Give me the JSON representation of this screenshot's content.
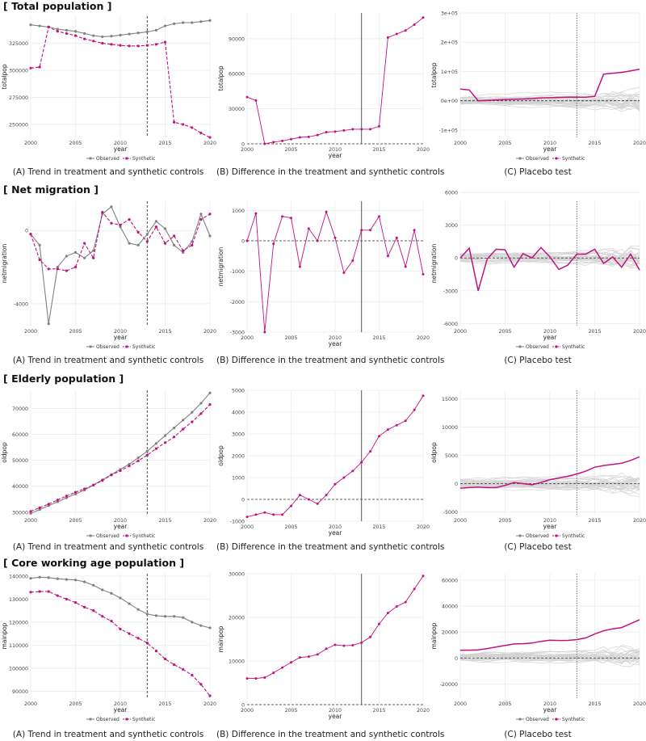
{
  "sections": [
    {
      "title": "[ Total population ]"
    },
    {
      "title": "[ Net migration ]"
    },
    {
      "title": "[ Elderly population ]"
    },
    {
      "title": "[ Core working age population ]"
    }
  ],
  "captions": {
    "A": "(A) Trend in treatment and synthetic controls",
    "B": "(B) Difference in the treatment and synthetic controls",
    "C": "(C) Placebo test"
  },
  "colors": {
    "observed": "#808080",
    "synthetic": "#c2127f",
    "placebo": "#d3d3d3",
    "grid": "#ececec",
    "treat_line": "#333333"
  },
  "chart_data": [
    {
      "id": "total-A",
      "type": "line",
      "xlabel": "year",
      "ylabel": "totalpop",
      "xlim": [
        2000,
        2020
      ],
      "ylim": [
        238000,
        350000
      ],
      "yticks": [
        250000,
        275000,
        300000,
        325000
      ],
      "ytick_labels": [
        "250000",
        "275000",
        "300000",
        "325000"
      ],
      "xticks": [
        2000,
        2005,
        2010,
        2015,
        2020
      ],
      "treatment_year": 2013,
      "legend": [
        "Observed",
        "Synthetic"
      ],
      "x": [
        2000,
        2001,
        2002,
        2003,
        2004,
        2005,
        2006,
        2007,
        2008,
        2009,
        2010,
        2011,
        2012,
        2013,
        2014,
        2015,
        2016,
        2017,
        2018,
        2019,
        2020
      ],
      "series": [
        {
          "name": "Observed",
          "values": [
            342000,
            341000,
            340000,
            338000,
            337000,
            336000,
            334000,
            332000,
            331000,
            331500,
            332500,
            333500,
            334500,
            335500,
            337000,
            341000,
            343000,
            344000,
            344000,
            345000,
            346000
          ]
        },
        {
          "name": "Synthetic",
          "values": [
            302000,
            303000,
            340000,
            336000,
            334000,
            332000,
            329000,
            327000,
            325000,
            324000,
            323000,
            322500,
            322500,
            323000,
            324000,
            326000,
            252000,
            250000,
            247000,
            242000,
            238000
          ]
        }
      ]
    },
    {
      "id": "total-B",
      "type": "line",
      "xlabel": "year",
      "ylabel": "totalpop",
      "xlim": [
        2000,
        2020
      ],
      "ylim": [
        0,
        112000
      ],
      "yticks": [
        0,
        30000,
        60000,
        90000
      ],
      "ytick_labels": [
        "0",
        "30000",
        "60000",
        "90000"
      ],
      "xticks": [
        2000,
        2005,
        2010,
        2015,
        2020
      ],
      "treatment_year": 2013,
      "x": [
        2000,
        2001,
        2002,
        2003,
        2004,
        2005,
        2006,
        2007,
        2008,
        2009,
        2010,
        2011,
        2012,
        2013,
        2014,
        2015,
        2016,
        2017,
        2018,
        2019,
        2020
      ],
      "series": [
        {
          "name": "",
          "values": [
            40000,
            37000,
            0,
            1500,
            2500,
            4000,
            5500,
            6000,
            7500,
            10000,
            10500,
            11500,
            12500,
            12500,
            12500,
            15000,
            91000,
            94000,
            97000,
            102000,
            108000
          ]
        }
      ]
    },
    {
      "id": "total-C",
      "type": "line",
      "xlabel": "year",
      "ylabel": "totalpop",
      "xlim": [
        2000,
        2020
      ],
      "ylim": [
        -125000,
        300000
      ],
      "yticks": [
        -100000,
        0,
        100000,
        200000,
        300000
      ],
      "ytick_labels": [
        "-1e+05",
        "0e+00",
        "1e+05",
        "2e+05",
        "3e+05"
      ],
      "xticks": [
        2000,
        2005,
        2010,
        2015,
        2020
      ],
      "treatment_year": 2013,
      "legend": [
        "Observed",
        "Synthetic"
      ],
      "x": [
        2000,
        2001,
        2002,
        2003,
        2004,
        2005,
        2006,
        2007,
        2008,
        2009,
        2010,
        2011,
        2012,
        2013,
        2014,
        2015,
        2016,
        2017,
        2018,
        2019,
        2020
      ],
      "series": [
        {
          "name": "",
          "values": [
            40000,
            37000,
            0,
            1500,
            2500,
            4000,
            5500,
            6000,
            7500,
            10000,
            10500,
            11500,
            12500,
            12500,
            12500,
            15000,
            91000,
            94000,
            97000,
            102000,
            108000
          ]
        }
      ]
    },
    {
      "id": "net-A",
      "type": "line",
      "xlabel": "year",
      "ylabel": "netmigration",
      "xlim": [
        2000,
        2020
      ],
      "ylim": [
        -5200,
        1600
      ],
      "yticks": [
        -4000,
        0
      ],
      "ytick_labels": [
        "-4000",
        "0"
      ],
      "xticks": [
        2000,
        2005,
        2010,
        2015,
        2020
      ],
      "treatment_year": 2013,
      "legend": [
        "Observed",
        "Synthetic"
      ],
      "x": [
        2000,
        2001,
        2002,
        2003,
        2004,
        2005,
        2006,
        2007,
        2008,
        2009,
        2010,
        2011,
        2012,
        2013,
        2014,
        2015,
        2016,
        2017,
        2018,
        2019,
        2020
      ],
      "series": [
        {
          "name": "Observed",
          "values": [
            -200,
            -800,
            -5100,
            -2000,
            -1400,
            -1200,
            -1500,
            -1100,
            900,
            1300,
            200,
            -700,
            -800,
            -200,
            500,
            100,
            -800,
            -1200,
            -600,
            900,
            -300
          ]
        },
        {
          "name": "Synthetic",
          "values": [
            -200,
            -1600,
            -2100,
            -2100,
            -2200,
            -2000,
            -700,
            -1500,
            1000,
            400,
            300,
            600,
            -100,
            -600,
            200,
            -700,
            -300,
            -1100,
            -800,
            600,
            900
          ]
        }
      ]
    },
    {
      "id": "net-B",
      "type": "line",
      "xlabel": "year",
      "ylabel": "netmigration",
      "xlim": [
        2000,
        2020
      ],
      "ylim": [
        -3000,
        1300
      ],
      "yticks": [
        -3000,
        -2000,
        -1000,
        0,
        1000
      ],
      "ytick_labels": [
        "-3000",
        "-2000",
        "-1000",
        "0",
        "1000"
      ],
      "xticks": [
        2000,
        2005,
        2010,
        2015,
        2020
      ],
      "treatment_year": 2013,
      "x": [
        2000,
        2001,
        2002,
        2003,
        2004,
        2005,
        2006,
        2007,
        2008,
        2009,
        2010,
        2011,
        2012,
        2013,
        2014,
        2015,
        2016,
        2017,
        2018,
        2019,
        2020
      ],
      "series": [
        {
          "name": "",
          "values": [
            0,
            900,
            -3000,
            -100,
            800,
            750,
            -850,
            400,
            0,
            950,
            100,
            -1050,
            -650,
            350,
            350,
            800,
            -500,
            100,
            -850,
            350,
            -1100
          ]
        }
      ]
    },
    {
      "id": "net-C",
      "type": "line",
      "xlabel": "year",
      "ylabel": "netmigration",
      "xlim": [
        2000,
        2020
      ],
      "ylim": [
        -6200,
        5200
      ],
      "yticks": [
        -6000,
        -3000,
        0,
        3000,
        6000
      ],
      "ytick_labels": [
        "-6000",
        "-3000",
        "0",
        "3000",
        "6000"
      ],
      "xticks": [
        2000,
        2005,
        2010,
        2015,
        2020
      ],
      "treatment_year": 2013,
      "legend": [
        "Observed",
        "Synthetic"
      ],
      "x": [
        2000,
        2001,
        2002,
        2003,
        2004,
        2005,
        2006,
        2007,
        2008,
        2009,
        2010,
        2011,
        2012,
        2013,
        2014,
        2015,
        2016,
        2017,
        2018,
        2019,
        2020
      ],
      "series": [
        {
          "name": "",
          "values": [
            0,
            900,
            -3000,
            -100,
            800,
            750,
            -850,
            400,
            0,
            950,
            100,
            -1050,
            -650,
            350,
            350,
            800,
            -500,
            100,
            -850,
            350,
            -1100
          ]
        }
      ]
    },
    {
      "id": "elderly-A",
      "type": "line",
      "xlabel": "year",
      "ylabel": "oldpop",
      "xlim": [
        2000,
        2020
      ],
      "ylim": [
        29000,
        77000
      ],
      "yticks": [
        30000,
        40000,
        50000,
        60000,
        70000
      ],
      "ytick_labels": [
        "30000",
        "40000",
        "50000",
        "60000",
        "70000"
      ],
      "xticks": [
        2000,
        2005,
        2010,
        2015,
        2020
      ],
      "treatment_year": 2013,
      "legend": [
        "Observed",
        "Synthetic"
      ],
      "x": [
        2000,
        2001,
        2002,
        2003,
        2004,
        2005,
        2006,
        2007,
        2008,
        2009,
        2010,
        2011,
        2012,
        2013,
        2014,
        2015,
        2016,
        2017,
        2018,
        2019,
        2020
      ],
      "series": [
        {
          "name": "Observed",
          "values": [
            29500,
            31000,
            32500,
            34000,
            35500,
            37000,
            38500,
            40500,
            42500,
            44500,
            46500,
            48500,
            51000,
            53500,
            56500,
            59500,
            62500,
            65500,
            68500,
            72000,
            76000
          ]
        },
        {
          "name": "Synthetic",
          "values": [
            30300,
            31700,
            33100,
            34700,
            36200,
            37700,
            39000,
            40400,
            42200,
            44300,
            46000,
            47800,
            49800,
            52000,
            54500,
            56800,
            59000,
            62000,
            64800,
            68000,
            71500
          ]
        }
      ]
    },
    {
      "id": "elderly-B",
      "type": "line",
      "xlabel": "year",
      "ylabel": "oldpop",
      "xlim": [
        2000,
        2020
      ],
      "ylim": [
        -1000,
        5000
      ],
      "yticks": [
        -1000,
        0,
        1000,
        2000,
        3000,
        4000,
        5000
      ],
      "ytick_labels": [
        "-1000",
        "0",
        "1000",
        "2000",
        "3000",
        "4000",
        "5000"
      ],
      "xticks": [
        2000,
        2005,
        2010,
        2015,
        2020
      ],
      "treatment_year": 2013,
      "x": [
        2000,
        2001,
        2002,
        2003,
        2004,
        2005,
        2006,
        2007,
        2008,
        2009,
        2010,
        2011,
        2012,
        2013,
        2014,
        2015,
        2016,
        2017,
        2018,
        2019,
        2020
      ],
      "series": [
        {
          "name": "",
          "values": [
            -800,
            -700,
            -600,
            -700,
            -700,
            -300,
            200,
            0,
            -200,
            200,
            700,
            1000,
            1300,
            1700,
            2200,
            2900,
            3200,
            3400,
            3600,
            4100,
            4750
          ]
        }
      ]
    },
    {
      "id": "elderly-C",
      "type": "line",
      "xlabel": "year",
      "ylabel": "oldpop",
      "xlim": [
        2000,
        2020
      ],
      "ylim": [
        -5500,
        16500
      ],
      "yticks": [
        -5000,
        0,
        5000,
        10000,
        15000
      ],
      "ytick_labels": [
        "-5000",
        "0",
        "5000",
        "10000",
        "15000"
      ],
      "xticks": [
        2000,
        2005,
        2010,
        2015,
        2020
      ],
      "treatment_year": 2013,
      "legend": [
        "Observed",
        "Synthetic"
      ],
      "x": [
        2000,
        2001,
        2002,
        2003,
        2004,
        2005,
        2006,
        2007,
        2008,
        2009,
        2010,
        2011,
        2012,
        2013,
        2014,
        2015,
        2016,
        2017,
        2018,
        2019,
        2020
      ],
      "series": [
        {
          "name": "",
          "values": [
            -800,
            -700,
            -600,
            -700,
            -700,
            -300,
            200,
            0,
            -200,
            200,
            700,
            1000,
            1300,
            1700,
            2200,
            2900,
            3200,
            3400,
            3600,
            4100,
            4750
          ]
        }
      ]
    },
    {
      "id": "core-A",
      "type": "line",
      "xlabel": "year",
      "ylabel": "mainpop",
      "xlim": [
        2000,
        2020
      ],
      "ylim": [
        87000,
        141000
      ],
      "yticks": [
        90000,
        100000,
        110000,
        120000,
        130000,
        140000
      ],
      "ytick_labels": [
        "90000",
        "100000",
        "110000",
        "120000",
        "130000",
        "140000"
      ],
      "xticks": [
        2000,
        2005,
        2010,
        2015,
        2020
      ],
      "treatment_year": 2013,
      "legend": [
        "Observed",
        "Synthetic"
      ],
      "x": [
        2000,
        2001,
        2002,
        2003,
        2004,
        2005,
        2006,
        2007,
        2008,
        2009,
        2010,
        2011,
        2012,
        2013,
        2014,
        2015,
        2016,
        2017,
        2018,
        2019,
        2020
      ],
      "series": [
        {
          "name": "Observed",
          "values": [
            139000,
            139500,
            139300,
            138800,
            138500,
            138300,
            137500,
            136000,
            134000,
            132500,
            130500,
            128000,
            125500,
            123500,
            122800,
            122500,
            122500,
            122000,
            120000,
            118500,
            117500
          ]
        },
        {
          "name": "Synthetic",
          "values": [
            133000,
            133300,
            133300,
            131500,
            130000,
            128500,
            126500,
            125000,
            122500,
            120500,
            117000,
            115000,
            113000,
            111000,
            107500,
            104000,
            101500,
            99500,
            97000,
            93000,
            88000
          ]
        }
      ]
    },
    {
      "id": "core-B",
      "type": "line",
      "xlabel": "year",
      "ylabel": "mainpop",
      "xlim": [
        2000,
        2020
      ],
      "ylim": [
        0,
        30000
      ],
      "yticks": [
        0,
        10000,
        20000,
        30000
      ],
      "ytick_labels": [
        "0",
        "10000",
        "20000",
        "30000"
      ],
      "xticks": [
        2000,
        2005,
        2010,
        2015,
        2020
      ],
      "treatment_year": 2013,
      "x": [
        2000,
        2001,
        2002,
        2003,
        2004,
        2005,
        2006,
        2007,
        2008,
        2009,
        2010,
        2011,
        2012,
        2013,
        2014,
        2015,
        2016,
        2017,
        2018,
        2019,
        2020
      ],
      "series": [
        {
          "name": "",
          "values": [
            6000,
            6000,
            6200,
            7300,
            8500,
            9700,
            10800,
            11000,
            11500,
            12800,
            13700,
            13500,
            13600,
            14200,
            15500,
            18500,
            21000,
            22500,
            23500,
            26500,
            29500
          ]
        }
      ]
    },
    {
      "id": "core-C",
      "type": "line",
      "xlabel": "year",
      "ylabel": "mainpop",
      "xlim": [
        2000,
        2020
      ],
      "ylim": [
        -31000,
        65000
      ],
      "yticks": [
        -20000,
        0,
        20000,
        40000,
        60000
      ],
      "ytick_labels": [
        "-20000",
        "0",
        "20000",
        "40000",
        "60000"
      ],
      "xticks": [
        2000,
        2005,
        2010,
        2015,
        2020
      ],
      "treatment_year": 2013,
      "legend": [
        "Observed",
        "Synthetic"
      ],
      "x": [
        2000,
        2001,
        2002,
        2003,
        2004,
        2005,
        2006,
        2007,
        2008,
        2009,
        2010,
        2011,
        2012,
        2013,
        2014,
        2015,
        2016,
        2017,
        2018,
        2019,
        2020
      ],
      "series": [
        {
          "name": "",
          "values": [
            6000,
            6000,
            6200,
            7300,
            8500,
            9700,
            10800,
            11000,
            11500,
            12800,
            13700,
            13500,
            13600,
            14200,
            15500,
            18500,
            21000,
            22500,
            23500,
            26500,
            29500
          ]
        }
      ]
    }
  ]
}
